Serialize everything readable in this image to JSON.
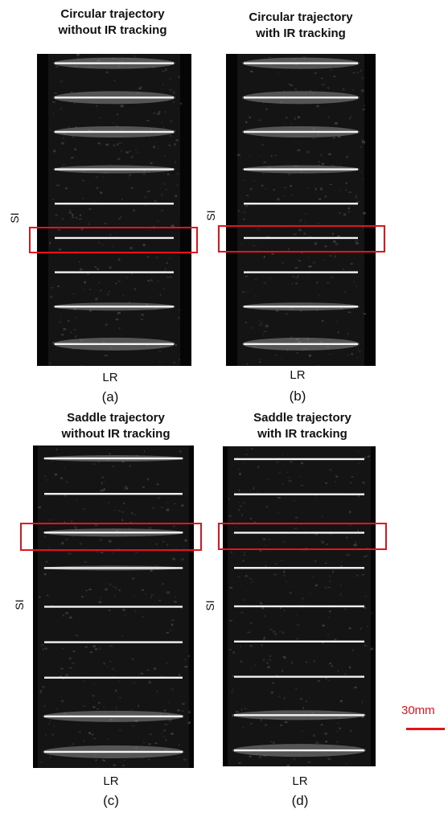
{
  "panels": [
    {
      "key": "a",
      "title": "Circular trajectory\nwithout IR tracking",
      "si": "SI",
      "lr": "LR",
      "caption": "(a)"
    },
    {
      "key": "b",
      "title": "Circular trajectory\nwith IR tracking",
      "si": "SI",
      "lr": "LR",
      "caption": "(b)"
    },
    {
      "key": "c",
      "title": "Saddle trajectory\nwithout IR tracking",
      "si": "SI",
      "lr": "LR",
      "caption": "(c)"
    },
    {
      "key": "d",
      "title": "Saddle trajectory\nwith IR tracking",
      "si": "SI",
      "lr": "LR",
      "caption": "(d)"
    }
  ],
  "scale_bar": {
    "label": "30mm"
  },
  "colors": {
    "roi": "#e8121b",
    "scale": "#e8121b",
    "image_bg": "#050505"
  }
}
